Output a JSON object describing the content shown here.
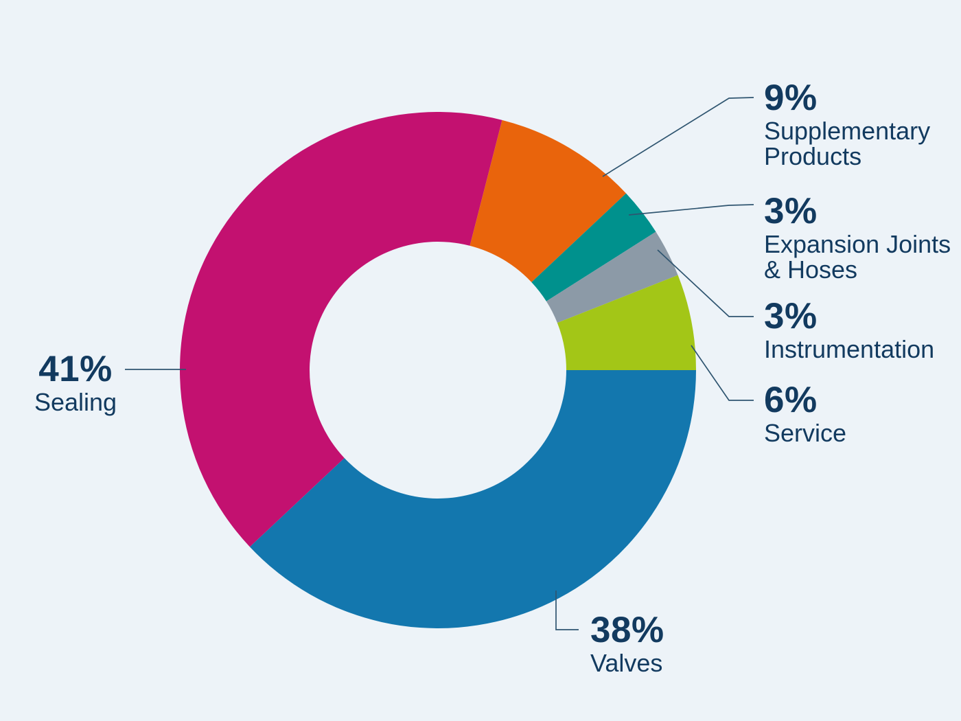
{
  "colors": {
    "background": "#edf3f8",
    "label_text": "#123a5f",
    "leader_line": "#2f5570"
  },
  "chart_data": {
    "type": "pie",
    "subtype": "donut",
    "title": "",
    "legend_position": "none",
    "grid": false,
    "direction": "clockwise",
    "start_angle_deg": 90,
    "segments": [
      {
        "name": "Valves",
        "value": 38,
        "pct_label": "38%",
        "color": "#1377ae"
      },
      {
        "name": "Sealing",
        "value": 41,
        "pct_label": "41%",
        "color": "#c31170"
      },
      {
        "name": "Supplementary Products",
        "value": 9,
        "pct_label": "9%",
        "color": "#e9640c"
      },
      {
        "name": "Expansion Joints & Hoses",
        "value": 3,
        "pct_label": "3%",
        "color": "#00918d"
      },
      {
        "name": "Instrumentation",
        "value": 3,
        "pct_label": "3%",
        "color": "#8c9aa7"
      },
      {
        "name": "Service",
        "value": 6,
        "pct_label": "6%",
        "color": "#a3c617"
      }
    ]
  }
}
